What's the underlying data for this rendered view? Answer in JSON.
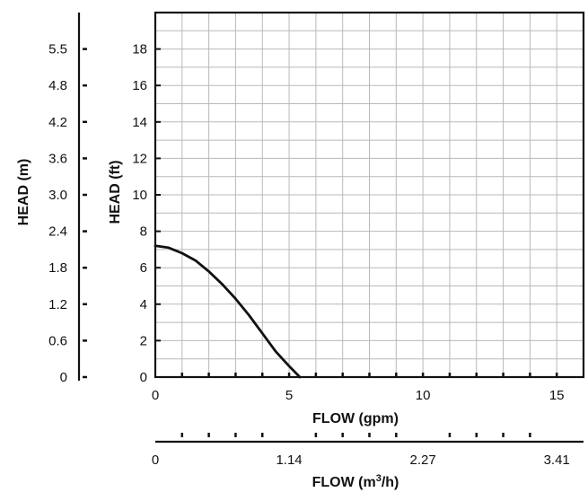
{
  "chart_data": {
    "type": "line",
    "grid": true,
    "x_primary": {
      "label": "FLOW (gpm)",
      "range": [
        0,
        16
      ],
      "ticks": [
        0,
        5,
        10,
        15
      ],
      "tick_labels": [
        "0",
        "5",
        "10",
        "15"
      ],
      "minor_ticks": [
        1,
        2,
        3,
        4,
        6,
        7,
        8,
        9,
        11,
        12,
        13,
        14
      ]
    },
    "x_secondary": {
      "label": "FLOW (m³/h)",
      "label_text": "FLOW (m",
      "label_sup": "3",
      "label_suffix": "/h)",
      "tick_labels": [
        "0",
        "1.14",
        "2.27",
        "3.41"
      ],
      "tick_values_gpm": [
        0,
        5,
        10,
        15
      ],
      "minor_ticks_gpm": [
        1,
        2,
        3,
        4,
        6,
        7,
        8,
        9,
        11,
        12,
        13,
        14
      ]
    },
    "y_primary": {
      "label": "HEAD (ft)",
      "range": [
        0,
        20
      ],
      "ticks": [
        0,
        2,
        4,
        6,
        8,
        10,
        12,
        14,
        16,
        18
      ],
      "tick_labels": [
        "0",
        "2",
        "4",
        "6",
        "8",
        "10",
        "12",
        "14",
        "16",
        "18"
      ]
    },
    "y_secondary": {
      "label": "HEAD (m)",
      "tick_labels": [
        "0",
        "0.6",
        "1.2",
        "1.8",
        "2.4",
        "3.0",
        "3.6",
        "4.2",
        "4.8",
        "5.5"
      ],
      "tick_values_ft": [
        0,
        2,
        4,
        6,
        8,
        10,
        12,
        14,
        16,
        18
      ]
    },
    "series": [
      {
        "color": "#111111",
        "x": [
          0,
          0.5,
          1,
          1.5,
          2,
          2.5,
          3,
          3.5,
          4,
          4.5,
          5,
          5.4
        ],
        "y": [
          7.2,
          7.1,
          6.8,
          6.4,
          5.8,
          5.1,
          4.3,
          3.4,
          2.4,
          1.4,
          0.6,
          0
        ]
      }
    ]
  }
}
